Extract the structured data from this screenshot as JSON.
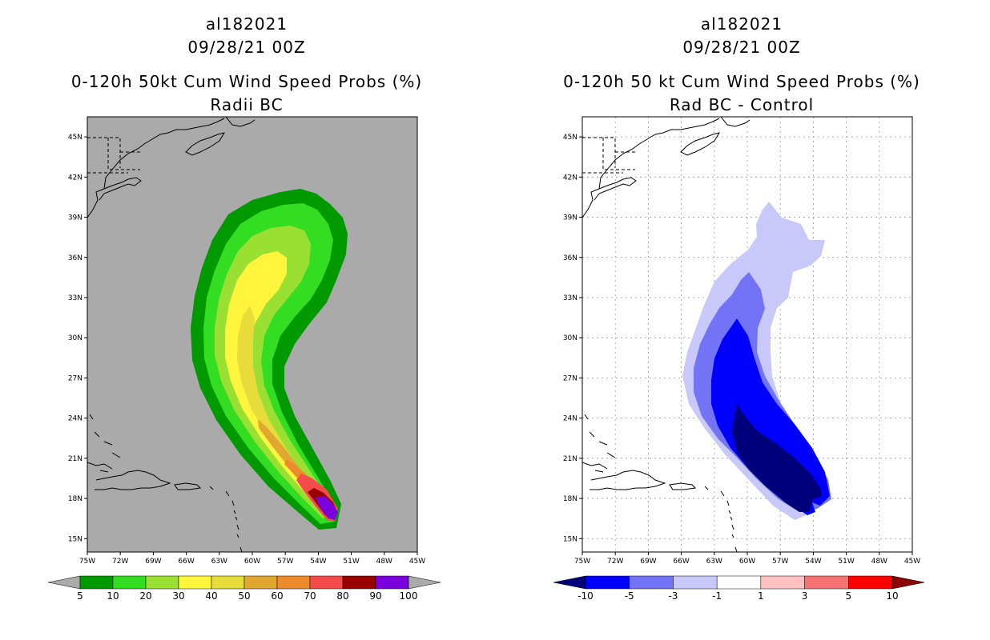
{
  "left_panel": {
    "title_lines": [
      "al182021",
      "09/28/21 00Z",
      "0-120h 50kt Cum Wind Speed Probs (%)",
      "Radii BC"
    ],
    "lat_labels": [
      "45N",
      "42N",
      "39N",
      "36N",
      "33N",
      "30N",
      "27N",
      "24N",
      "21N",
      "18N",
      "15N"
    ],
    "lon_labels": [
      "75W",
      "72W",
      "69W",
      "66W",
      "63W",
      "60W",
      "57W",
      "54W",
      "51W",
      "48W",
      "45W"
    ],
    "colorbar": {
      "labels": [
        "5",
        "10",
        "20",
        "30",
        "40",
        "50",
        "60",
        "70",
        "80",
        "90",
        "100"
      ],
      "colors": [
        "#009900",
        "#33dd22",
        "#99e033",
        "#fff53d",
        "#e8dc3a",
        "#e0a830",
        "#ec8a2c",
        "#f54b4b",
        "#990000",
        "#7a00dd"
      ],
      "end_color": "#aaaaaa"
    },
    "background": "#aaaaaa"
  },
  "right_panel": {
    "title_lines": [
      "al182021",
      "09/28/21 00Z",
      "0-120h 50 kt Cum Wind Speed Probs (%)",
      "Rad BC - Control"
    ],
    "lat_labels": [
      "45N",
      "42N",
      "39N",
      "36N",
      "33N",
      "30N",
      "27N",
      "24N",
      "21N",
      "18N",
      "15N"
    ],
    "lon_labels": [
      "75W",
      "72W",
      "69W",
      "66W",
      "63W",
      "60W",
      "57W",
      "54W",
      "51W",
      "48W",
      "45W"
    ],
    "colorbar": {
      "labels": [
        "-10",
        "-5",
        "-3",
        "-1",
        "1",
        "3",
        "5",
        "10"
      ],
      "colors": [
        "#0000ff",
        "#7373f5",
        "#c8c8fa",
        "#ffffff",
        "#ffc0c0",
        "#f57373",
        "#ff0000"
      ],
      "end_low": "#00007a",
      "end_high": "#8b0000"
    },
    "background": "#ffffff"
  },
  "map": {
    "lat_range": [
      14,
      46.5
    ],
    "lon_range": [
      -75,
      -45
    ]
  }
}
